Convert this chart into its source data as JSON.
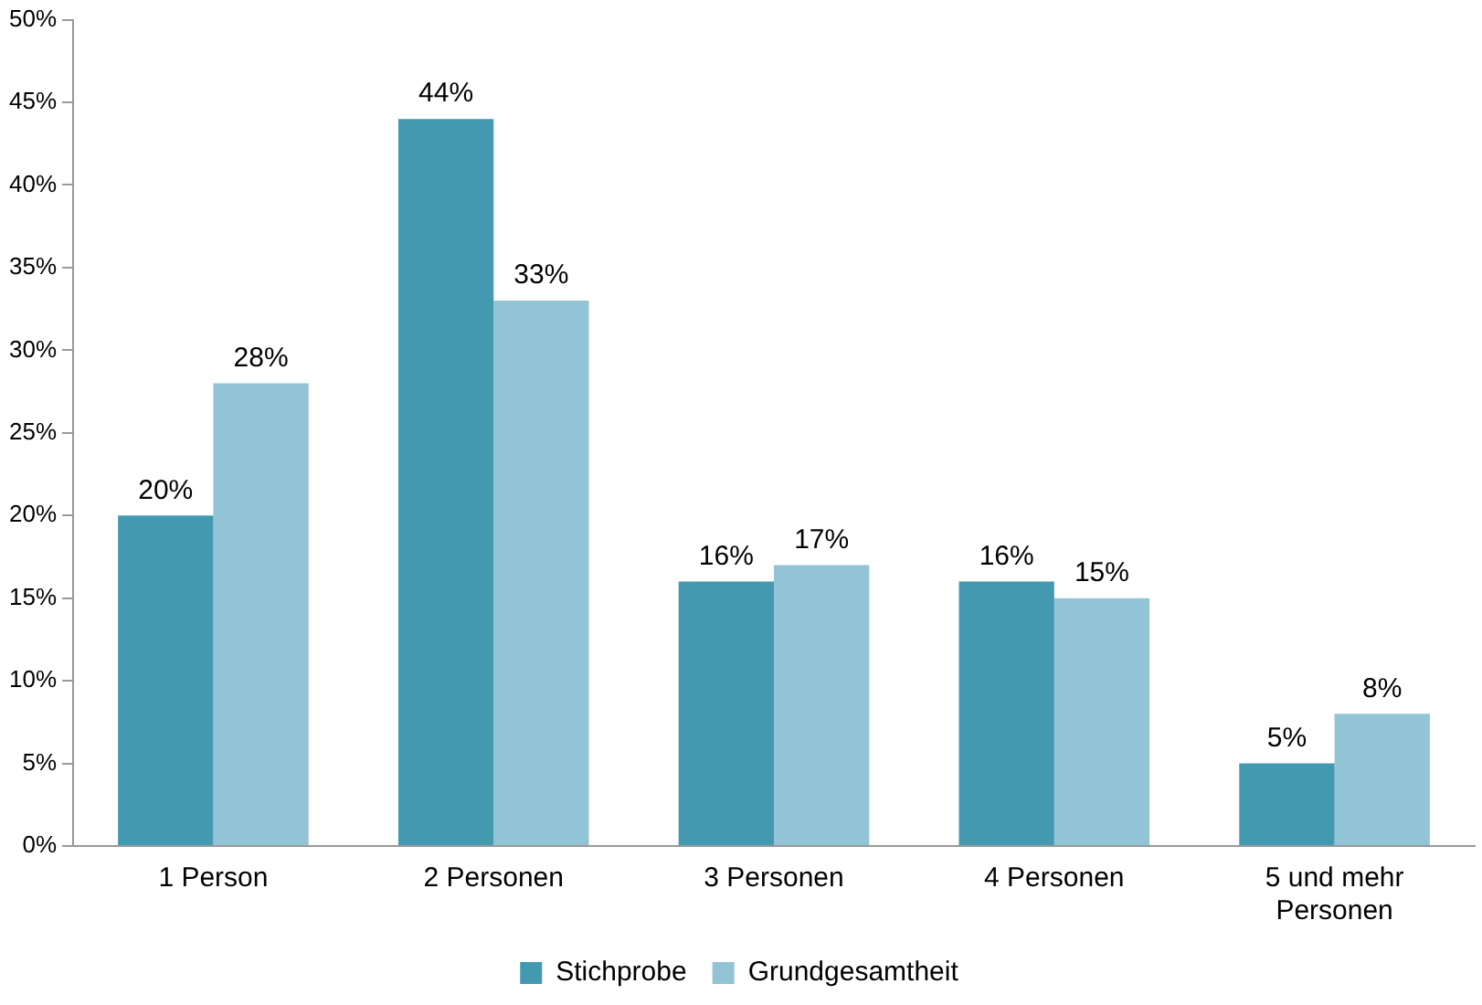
{
  "chart_data": {
    "type": "bar",
    "categories": [
      "1 Person",
      "2 Personen",
      "3 Personen",
      "4 Personen",
      "5 und mehr Personen"
    ],
    "series": [
      {
        "name": "Stichprobe",
        "color": "#4399b0",
        "values": [
          20,
          44,
          16,
          16,
          5
        ],
        "value_labels": [
          "20%",
          "44%",
          "16%",
          "16%",
          "5%"
        ]
      },
      {
        "name": "Grundgesamtheit",
        "color": "#93c4d5",
        "values": [
          28,
          33,
          17,
          15,
          8
        ],
        "value_labels": [
          "28%",
          "33%",
          "17%",
          "15%",
          "8%"
        ]
      }
    ],
    "ylim": [
      0,
      50
    ],
    "yticks": [
      {
        "value": 0,
        "label": "0%"
      },
      {
        "value": 5,
        "label": "5%"
      },
      {
        "value": 10,
        "label": "10%"
      },
      {
        "value": 15,
        "label": "15%"
      },
      {
        "value": 20,
        "label": "20%"
      },
      {
        "value": 25,
        "label": "25%"
      },
      {
        "value": 30,
        "label": "30%"
      },
      {
        "value": 35,
        "label": "35%"
      },
      {
        "value": 40,
        "label": "40%"
      },
      {
        "value": 45,
        "label": "45%"
      },
      {
        "value": 50,
        "label": "50%"
      }
    ],
    "grid": false,
    "legend": "bottom"
  }
}
